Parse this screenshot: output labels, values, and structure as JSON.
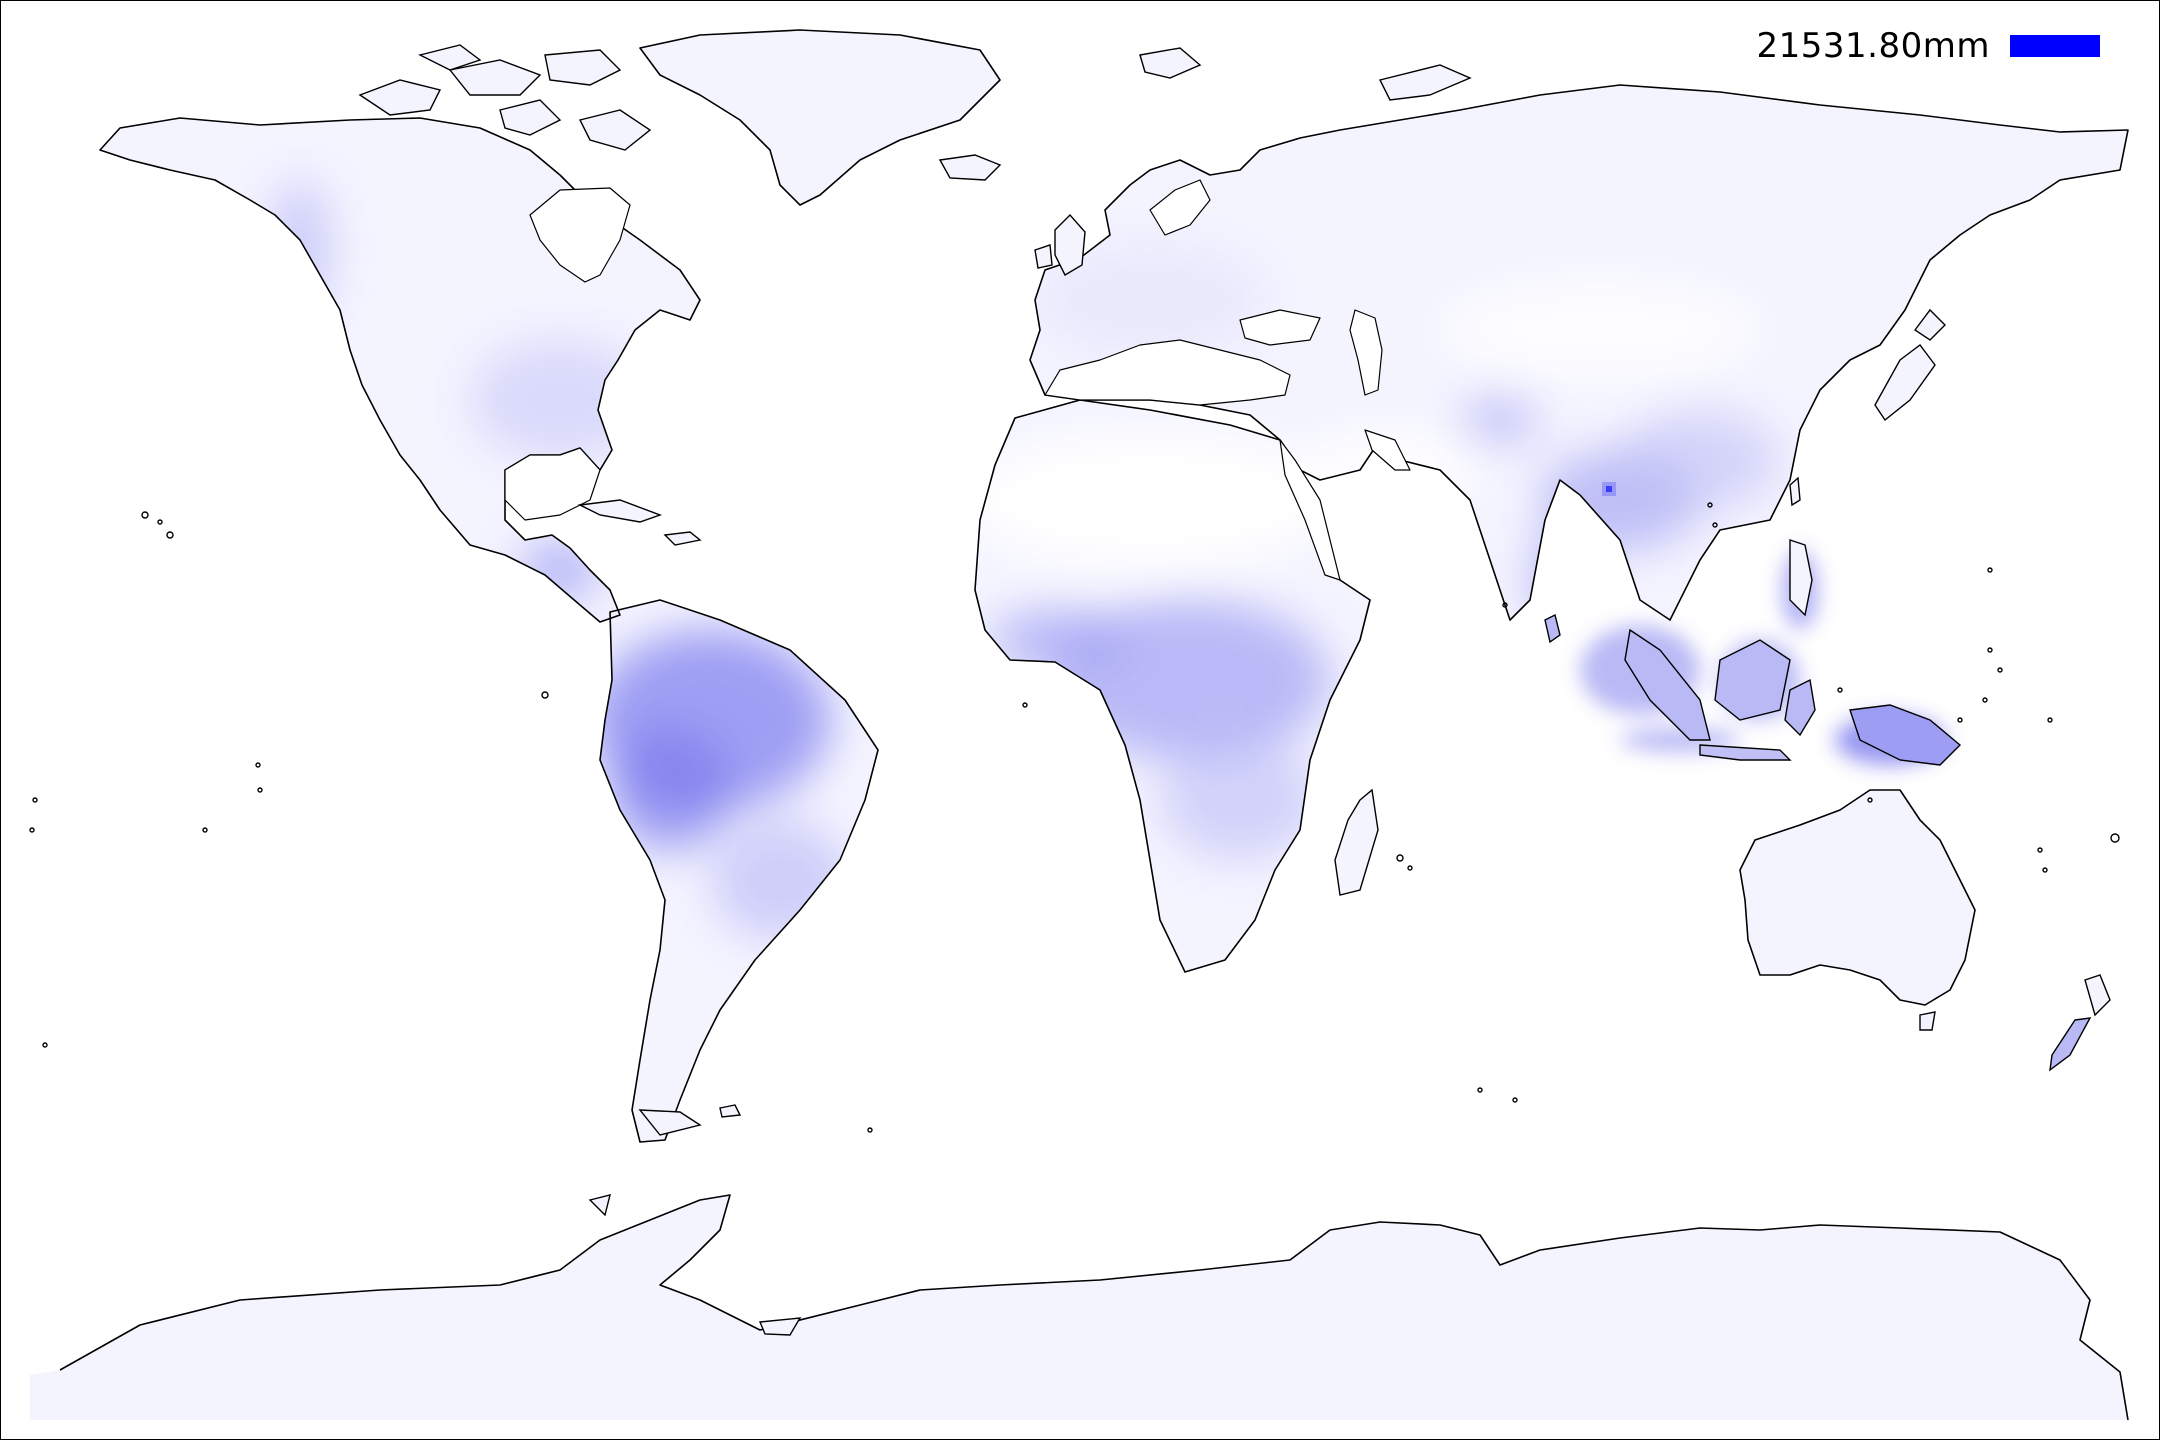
{
  "map": {
    "projection": "equirectangular",
    "land_fill_color": "#f4f4ff",
    "coastline_color": "#000000",
    "ocean_color": "#ffffff"
  },
  "legend": {
    "label": "21531.80mm",
    "color": "#0000ff"
  }
}
